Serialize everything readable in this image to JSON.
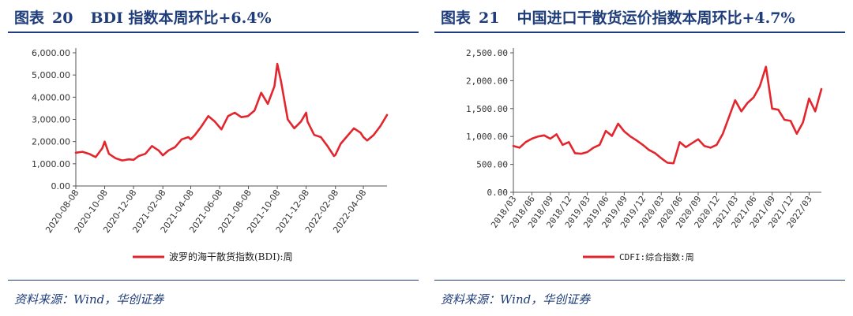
{
  "left": {
    "fig_label": "图表",
    "fig_num": "20",
    "fig_title": "BDI 指数本周环比+6.4%",
    "source": "资料来源：Wind，华创证券"
  },
  "right": {
    "fig_label": "图表",
    "fig_num": "21",
    "fig_title": "中国进口干散货运价指数本周环比+4.7%",
    "source": "资料来源：Wind，华创证券"
  },
  "chart_data": [
    {
      "type": "line",
      "ylim": [
        0,
        6000
      ],
      "yticks": [
        "0.00",
        "1,000.00",
        "2,000.00",
        "3,000.00",
        "4,000.00",
        "5,000.00",
        "6,000.00"
      ],
      "xticks": [
        "2020-08-08",
        "2020-10-08",
        "2020-12-08",
        "2021-02-08",
        "2021-04-08",
        "2021-06-08",
        "2021-08-08",
        "2021-10-08",
        "2021-12-08",
        "2022-02-08",
        "2022-04-08"
      ],
      "series": [
        {
          "name": "波罗的海干散货指数(BDI):周",
          "color": "#e3262e",
          "x": [
            "2020-08-08",
            "2020-08-22",
            "2020-09-05",
            "2020-09-19",
            "2020-10-03",
            "2020-10-08",
            "2020-10-17",
            "2020-10-31",
            "2020-11-14",
            "2020-11-28",
            "2020-12-08",
            "2020-12-19",
            "2021-01-02",
            "2021-01-16",
            "2021-01-30",
            "2021-02-08",
            "2021-02-20",
            "2021-03-06",
            "2021-03-20",
            "2021-04-03",
            "2021-04-08",
            "2021-04-17",
            "2021-05-01",
            "2021-05-15",
            "2021-05-29",
            "2021-06-08",
            "2021-06-12",
            "2021-06-26",
            "2021-07-10",
            "2021-07-24",
            "2021-08-07",
            "2021-08-21",
            "2021-09-04",
            "2021-09-18",
            "2021-10-02",
            "2021-10-08",
            "2021-10-16",
            "2021-10-30",
            "2021-11-13",
            "2021-11-27",
            "2021-12-08",
            "2021-12-11",
            "2021-12-25",
            "2022-01-08",
            "2022-01-22",
            "2022-02-05",
            "2022-02-08",
            "2022-02-19",
            "2022-03-05",
            "2022-03-19",
            "2022-04-02",
            "2022-04-08",
            "2022-04-16",
            "2022-04-30",
            "2022-05-14",
            "2022-05-28"
          ],
          "y": [
            1500,
            1540,
            1450,
            1300,
            1700,
            2000,
            1450,
            1250,
            1150,
            1200,
            1180,
            1350,
            1450,
            1800,
            1600,
            1380,
            1600,
            1750,
            2100,
            2200,
            2100,
            2300,
            2700,
            3150,
            2900,
            2650,
            2550,
            3150,
            3300,
            3100,
            3150,
            3400,
            4200,
            3700,
            4500,
            5500,
            4700,
            3000,
            2600,
            2900,
            3300,
            2900,
            2300,
            2200,
            1800,
            1350,
            1400,
            1900,
            2250,
            2600,
            2400,
            2200,
            2050,
            2300,
            2700,
            3200
          ]
        }
      ]
    },
    {
      "type": "line",
      "ylim": [
        0,
        2500
      ],
      "yticks": [
        "0.00",
        "500.00",
        "1,000.00",
        "1,500.00",
        "2,000.00",
        "2,500.00"
      ],
      "xticks": [
        "2018/03",
        "2018/06",
        "2018/09",
        "2018/12",
        "2019/03",
        "2019/06",
        "2019/09",
        "2019/12",
        "2020/03",
        "2020/06",
        "2020/09",
        "2020/12",
        "2021/03",
        "2021/06",
        "2021/09",
        "2021/12",
        "2022/03"
      ],
      "series": [
        {
          "name": "CDFI:综合指数:周",
          "color": "#e3262e",
          "x": [
            "2018/03",
            "2018/04",
            "2018/05",
            "2018/06",
            "2018/07",
            "2018/08",
            "2018/09",
            "2018/10",
            "2018/11",
            "2018/12",
            "2019/01",
            "2019/02",
            "2019/03",
            "2019/04",
            "2019/05",
            "2019/06",
            "2019/07",
            "2019/08",
            "2019/09",
            "2019/10",
            "2019/11",
            "2019/12",
            "2020/01",
            "2020/02",
            "2020/03",
            "2020/04",
            "2020/05",
            "2020/06",
            "2020/07",
            "2020/08",
            "2020/09",
            "2020/10",
            "2020/11",
            "2020/12",
            "2021/01",
            "2021/02",
            "2021/03",
            "2021/04",
            "2021/05",
            "2021/06",
            "2021/07",
            "2021/08",
            "2021/09",
            "2021/10",
            "2021/11",
            "2021/12",
            "2022/01",
            "2022/02",
            "2022/03",
            "2022/04",
            "2022/05"
          ],
          "y": [
            830,
            800,
            900,
            960,
            1000,
            1020,
            960,
            1040,
            850,
            900,
            700,
            690,
            720,
            800,
            850,
            1100,
            1010,
            1230,
            1090,
            1000,
            930,
            850,
            760,
            700,
            610,
            530,
            520,
            900,
            810,
            880,
            950,
            830,
            800,
            850,
            1050,
            1350,
            1650,
            1450,
            1600,
            1700,
            1900,
            2250,
            1500,
            1480,
            1300,
            1280,
            1050,
            1250,
            1680,
            1450,
            1850
          ]
        }
      ]
    }
  ]
}
